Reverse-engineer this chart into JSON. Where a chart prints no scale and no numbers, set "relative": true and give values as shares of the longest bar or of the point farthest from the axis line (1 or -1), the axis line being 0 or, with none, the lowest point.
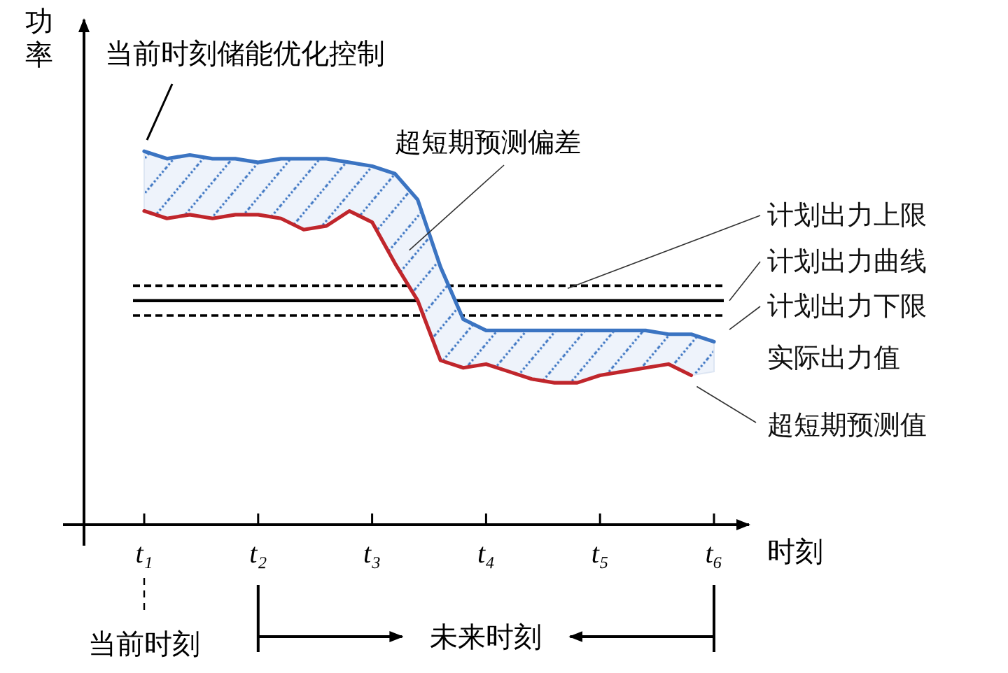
{
  "chart_data": {
    "type": "line",
    "relative": true,
    "xlabel": "时刻",
    "ylabel": "功率",
    "categories": [
      "t₁",
      null,
      null,
      null,
      null,
      "t₂",
      null,
      null,
      null,
      null,
      "t₃",
      null,
      null,
      null,
      null,
      "t₄",
      null,
      null,
      null,
      null,
      "t₅",
      null,
      null,
      null,
      null,
      "t₆"
    ],
    "series": [
      {
        "name": "实际出力值",
        "color": "#3b74c2",
        "values": [
          1.0,
          0.98,
          0.99,
          0.98,
          0.98,
          0.97,
          0.98,
          0.98,
          0.98,
          0.97,
          0.96,
          0.94,
          0.87,
          0.69,
          0.55,
          0.52,
          0.52,
          0.52,
          0.52,
          0.52,
          0.52,
          0.52,
          0.52,
          0.51,
          0.51,
          0.49
        ],
        "upper": [
          1.0,
          0.98,
          0.99,
          0.98,
          0.98,
          0.97,
          0.98,
          0.98,
          0.98,
          0.97,
          0.96,
          0.94,
          0.87,
          0.69,
          0.55,
          0.52,
          0.52,
          0.52,
          0.52,
          0.52,
          0.52,
          0.52,
          0.52,
          0.51,
          0.51,
          0.49
        ],
        "lower": [
          0.84,
          0.82,
          0.83,
          0.82,
          0.83,
          0.83,
          0.82,
          0.79,
          0.8,
          0.84,
          0.81,
          0.7,
          0.6,
          0.44,
          0.42,
          0.43,
          0.41,
          0.39,
          0.38,
          0.38,
          0.4,
          0.41,
          0.42,
          0.43,
          0.4,
          0.41
        ]
      },
      {
        "name": "超短期预测值",
        "color": "#c0262c",
        "values": [
          0.84,
          0.82,
          0.83,
          0.82,
          0.83,
          0.83,
          0.82,
          0.79,
          0.8,
          0.84,
          0.81,
          0.7,
          0.6,
          0.44,
          0.42,
          0.43,
          0.41,
          0.39,
          0.38,
          0.38,
          0.4,
          0.41,
          0.42,
          0.43,
          0.4,
          null
        ]
      }
    ],
    "ref_lines": [
      {
        "axis": "y",
        "value": 0.64,
        "label": "计划出力上限",
        "line_style": "dashed",
        "color": "#000000"
      },
      {
        "axis": "y",
        "value": 0.6,
        "label": "计划出力曲线",
        "line_style": "solid",
        "color": "#000000"
      },
      {
        "axis": "y",
        "value": 0.56,
        "label": "计划出力下限",
        "line_style": "dashed",
        "color": "#000000"
      }
    ],
    "annotations": [
      {
        "text": "当前时刻储能优化控制",
        "x": "t₁",
        "y": 1.0
      },
      "超短期预测偏差",
      "当前时刻",
      "未来时刻"
    ]
  }
}
